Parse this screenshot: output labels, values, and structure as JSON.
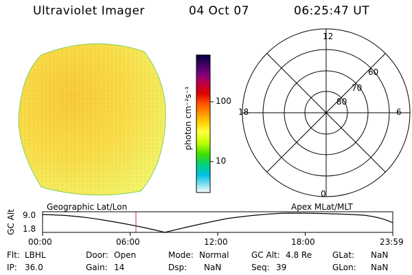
{
  "header": {
    "instrument": "Ultraviolet Imager",
    "date": "04 Oct 07",
    "time": "06:25:47 UT"
  },
  "colorbar": {
    "unit_label": "photon cm⁻²s⁻¹",
    "ticks": [
      "100",
      "10"
    ],
    "colors": [
      "#000040",
      "#400060",
      "#800080",
      "#c00040",
      "#e00000",
      "#ff5000",
      "#ff9000",
      "#ffd000",
      "#ffff40",
      "#c0ff00",
      "#40e000",
      "#00d080",
      "#00c0e0",
      "#80e0f0",
      "#ffffff"
    ]
  },
  "polar": {
    "mlt_top": "12",
    "mlt_bottom": "0",
    "mlt_left": "18",
    "mlt_right": "6",
    "lat_labels": [
      "60",
      "70",
      "80"
    ]
  },
  "timeline": {
    "y_axis_label": "GC Alt",
    "y_max": "9.0",
    "y_min": "1.8",
    "left_label": "Geographic Lat/Lon",
    "right_label": "Apex MLat/MLT",
    "x_ticks": [
      "00:00",
      "06:00",
      "12:00",
      "18:00",
      "23:59"
    ],
    "current_time_fraction": 0.268
  },
  "status": {
    "flt_label": "Flt:",
    "flt_value": "LBHL",
    "ip_label": "IP:",
    "ip_value": "36.0",
    "door_label": "Door:",
    "door_value": "Open",
    "gain_label": "Gain:",
    "gain_value": "14",
    "mode_label": "Mode:",
    "mode_value": "Normal",
    "dsp_label": "Dsp:",
    "dsp_value": "NaN",
    "gcalt_label": "GC Alt:",
    "gcalt_value": "4.8 Re",
    "seq_label": "Seq:",
    "seq_value": "39",
    "glat_label": "GLat:",
    "glat_value": "NaN",
    "glon_label": "GLon:",
    "glon_value": "NaN"
  }
}
